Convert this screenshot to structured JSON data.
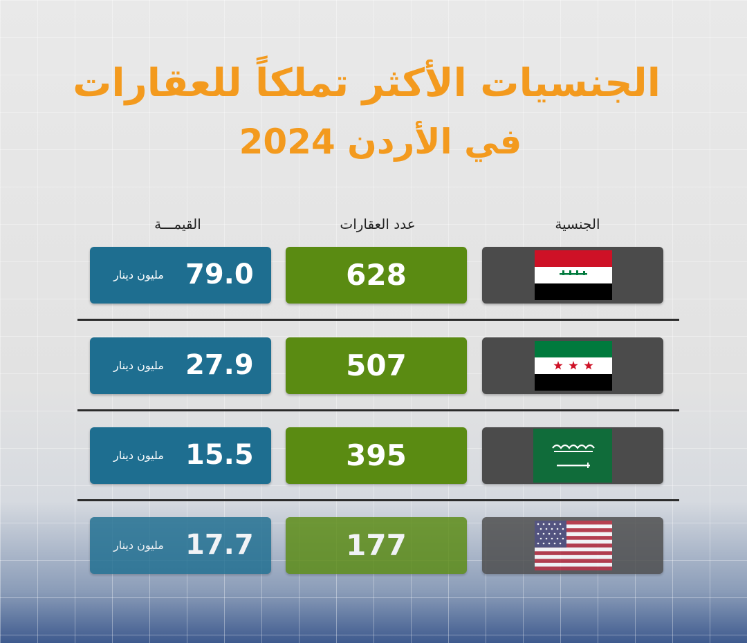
{
  "title_line1": "الجنسيات الأكثر تملكاً للعقارات",
  "title_line2": "في الأردن 2024",
  "colors": {
    "title": "#f39a1e",
    "nationality_box": "#4b4b4b",
    "count_box": "#5a8b12",
    "value_box": "#1e6e90"
  },
  "chart_data": {
    "type": "table",
    "columns": [
      "الجنسية",
      "عدد العقارات",
      "القيمـــة"
    ],
    "unit": "مليون دينار",
    "rows": [
      {
        "flag_icon": "iraq-flag-icon",
        "count": "628",
        "value": "79.0"
      },
      {
        "flag_icon": "syria-flag-icon",
        "count": "507",
        "value": "27.9"
      },
      {
        "flag_icon": "saudi-arabia-flag-icon",
        "count": "395",
        "value": "15.5"
      },
      {
        "flag_icon": "usa-flag-icon",
        "count": "177",
        "value": "17.7"
      }
    ]
  }
}
